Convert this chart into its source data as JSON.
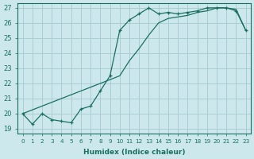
{
  "xlabel": "Humidex (Indice chaleur)",
  "bg_color": "#cce8ec",
  "grid_color": "#aacdd4",
  "line_color": "#1a7060",
  "xlim": [
    -0.5,
    23.5
  ],
  "ylim": [
    18.7,
    27.3
  ],
  "xticks": [
    0,
    1,
    2,
    3,
    4,
    5,
    6,
    7,
    8,
    9,
    10,
    11,
    12,
    13,
    14,
    15,
    16,
    17,
    18,
    19,
    20,
    21,
    22,
    23
  ],
  "yticks": [
    19,
    20,
    21,
    22,
    23,
    24,
    25,
    26,
    27
  ],
  "curve1_x": [
    0,
    1,
    2,
    3,
    4,
    5,
    6,
    7,
    8,
    9,
    10,
    11,
    12,
    13,
    14,
    15,
    16,
    17,
    18,
    19,
    20,
    21,
    22,
    23
  ],
  "curve1_y": [
    20.0,
    19.3,
    20.0,
    19.6,
    19.5,
    19.4,
    20.3,
    20.5,
    21.5,
    22.5,
    25.5,
    26.2,
    26.6,
    27.0,
    26.6,
    26.7,
    26.6,
    26.7,
    26.8,
    27.0,
    27.0,
    27.0,
    26.8,
    25.5
  ],
  "curve2_x": [
    0,
    10,
    11,
    12,
    13,
    14,
    15,
    16,
    17,
    18,
    19,
    20,
    21,
    22,
    23
  ],
  "curve2_y": [
    20.0,
    22.5,
    23.5,
    24.3,
    25.2,
    26.0,
    26.3,
    26.4,
    26.5,
    26.7,
    26.8,
    27.0,
    27.0,
    26.9,
    25.5
  ],
  "marker": "+",
  "marker_size": 3.5,
  "linewidth": 0.9
}
